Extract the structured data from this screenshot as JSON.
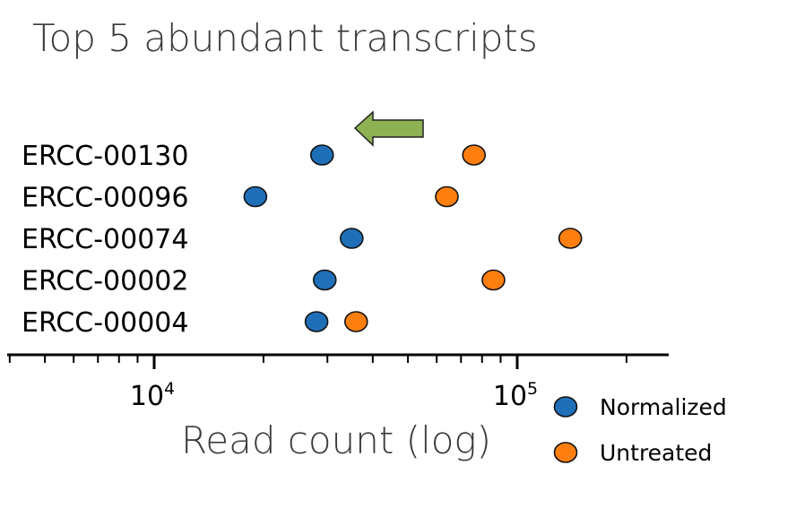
{
  "chart_data": {
    "type": "scatter",
    "title": "Top 5 abundant transcripts",
    "xlabel": "Read count (log)",
    "ylabel": "",
    "x_scale": "log",
    "xlim": [
      4000,
      250000
    ],
    "categories": [
      "ERCC-00130",
      "ERCC-00096",
      "ERCC-00074",
      "ERCC-00002",
      "ERCC-00004"
    ],
    "x_ticks": [
      {
        "base": "10",
        "exp": "4",
        "value": 10000
      },
      {
        "base": "10",
        "exp": "5",
        "value": 100000
      }
    ],
    "series": [
      {
        "name": "Normalized",
        "color": "#1f6fb8",
        "values": [
          29000,
          19000,
          35000,
          29500,
          28000
        ]
      },
      {
        "name": "Untreated",
        "color": "#ff7f0e",
        "values": [
          76000,
          64000,
          140000,
          86000,
          36000
        ]
      }
    ],
    "legend_position": "bottom-right",
    "annotation": {
      "type": "arrow",
      "direction": "left",
      "color": "#8db153"
    }
  }
}
